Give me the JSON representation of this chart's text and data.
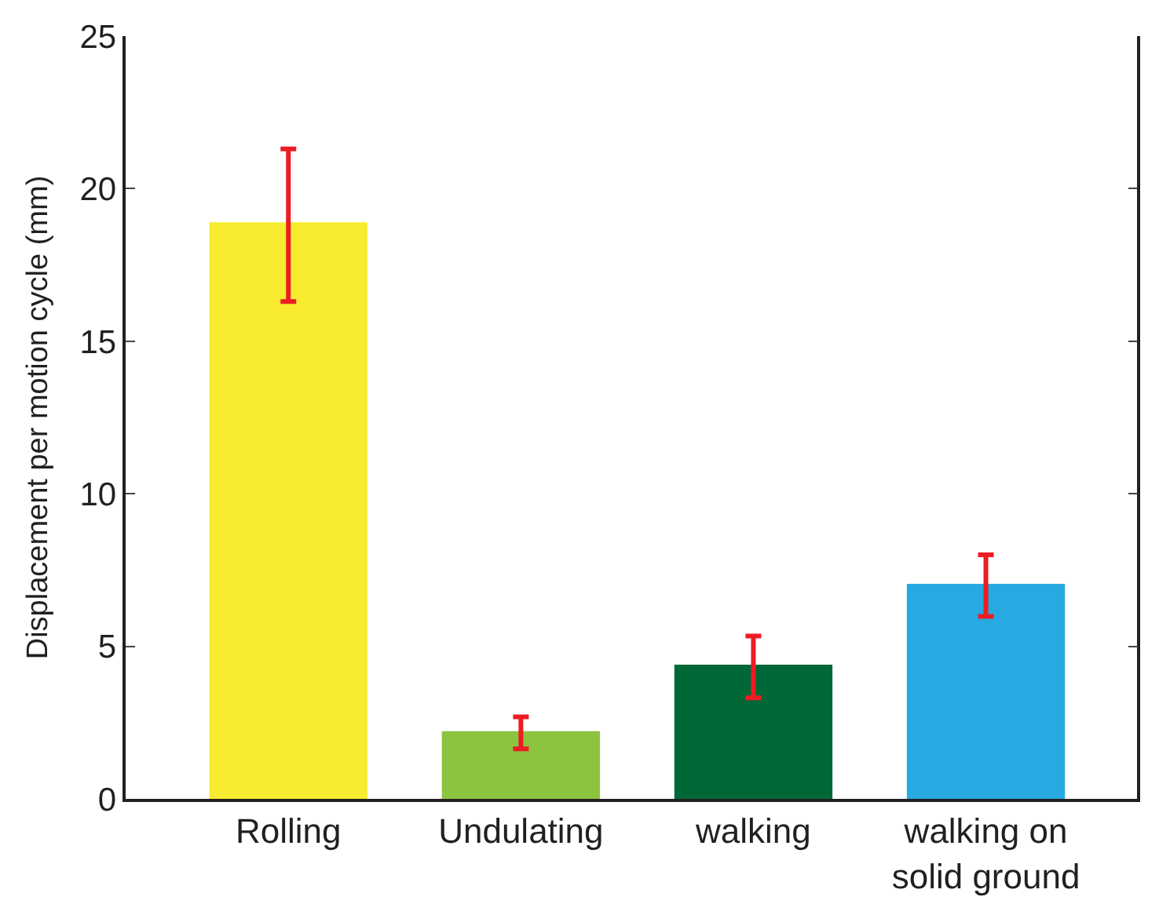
{
  "chart_data": {
    "type": "bar",
    "ylabel": "Displacement per motion cycle (mm)",
    "categories": [
      "Rolling",
      "Undulating",
      "walking",
      "walking on\nsolid ground"
    ],
    "values": [
      18.9,
      2.22,
      4.4,
      7.05
    ],
    "colors": [
      "#f9eb30",
      "#8cc43f",
      "#006837",
      "#27a9e1"
    ],
    "errors": [
      [
        16.3,
        21.3
      ],
      [
        1.64,
        2.69
      ],
      [
        3.31,
        5.34
      ],
      [
        5.98,
        8.0
      ]
    ],
    "ylim": [
      0,
      25
    ],
    "yticks": [
      0,
      5,
      10,
      15,
      20,
      25
    ],
    "legend": false
  }
}
